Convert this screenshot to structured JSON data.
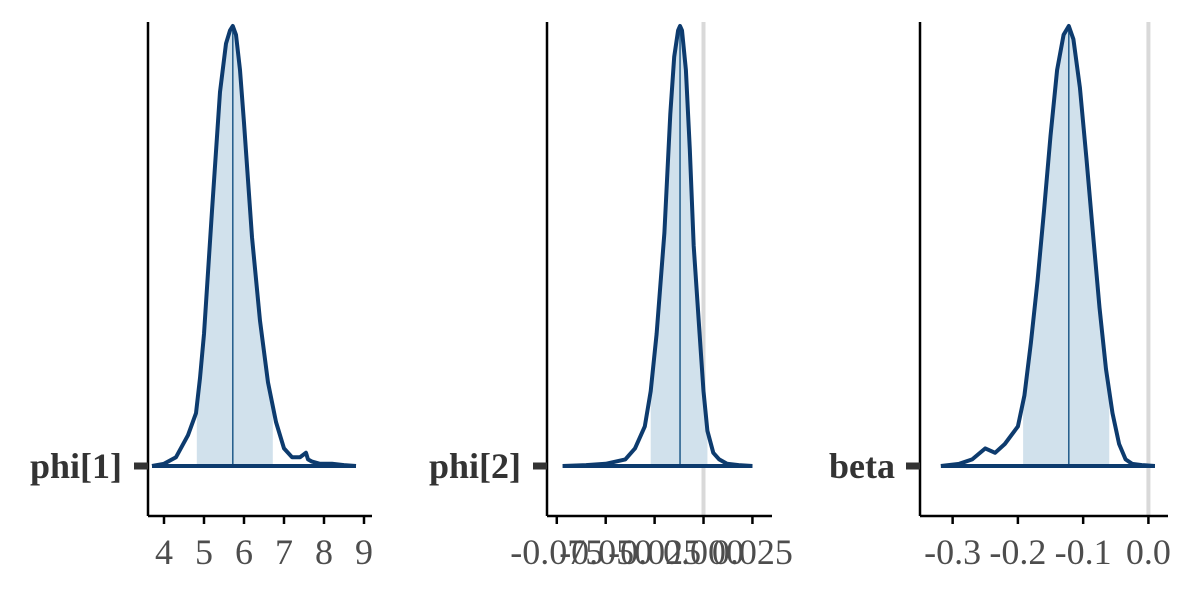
{
  "chart_data": [
    {
      "type": "area",
      "parameter": "phi[1]",
      "xlim": [
        3.6,
        9.2
      ],
      "ticks": [
        4,
        5,
        6,
        7,
        8,
        9
      ],
      "tick_labels": [
        "4",
        "5",
        "6",
        "7",
        "8",
        "9"
      ],
      "median": 5.72,
      "interval": [
        4.82,
        6.72
      ],
      "zero_line": false,
      "density": {
        "x": [
          3.7,
          4.0,
          4.3,
          4.6,
          4.8,
          4.9,
          5.0,
          5.2,
          5.4,
          5.55,
          5.65,
          5.72,
          5.8,
          5.9,
          6.0,
          6.2,
          6.4,
          6.6,
          6.8,
          7.0,
          7.2,
          7.4,
          7.55,
          7.6,
          7.7,
          7.9,
          8.2,
          8.5,
          8.8
        ],
        "y": [
          0,
          0.005,
          0.02,
          0.07,
          0.12,
          0.2,
          0.3,
          0.58,
          0.85,
          0.96,
          0.99,
          1.0,
          0.98,
          0.9,
          0.78,
          0.52,
          0.33,
          0.19,
          0.1,
          0.04,
          0.02,
          0.02,
          0.03,
          0.015,
          0.01,
          0.005,
          0.005,
          0.002,
          0
        ]
      }
    },
    {
      "type": "area",
      "parameter": "phi[2]",
      "xlim": [
        -0.08,
        0.035
      ],
      "ticks": [
        -0.075,
        -0.05,
        -0.025,
        0.0,
        0.025
      ],
      "tick_labels": [
        "-0.075",
        "-0.050",
        "-0.025",
        "0.000",
        "0.025"
      ],
      "median": -0.012,
      "interval": [
        -0.027,
        0.002
      ],
      "zero_line": true,
      "density": {
        "x": [
          -0.072,
          -0.06,
          -0.05,
          -0.04,
          -0.035,
          -0.03,
          -0.027,
          -0.024,
          -0.02,
          -0.017,
          -0.015,
          -0.013,
          -0.012,
          -0.011,
          -0.009,
          -0.007,
          -0.005,
          -0.002,
          0.0,
          0.002,
          0.005,
          0.008,
          0.012,
          0.018,
          0.025
        ],
        "y": [
          0,
          0.002,
          0.005,
          0.015,
          0.04,
          0.09,
          0.17,
          0.3,
          0.53,
          0.8,
          0.93,
          0.99,
          1.0,
          0.99,
          0.9,
          0.72,
          0.5,
          0.3,
          0.17,
          0.08,
          0.03,
          0.015,
          0.005,
          0.002,
          0
        ]
      }
    },
    {
      "type": "area",
      "parameter": "beta",
      "xlim": [
        -0.35,
        0.03
      ],
      "ticks": [
        -0.3,
        -0.2,
        -0.1,
        0.0
      ],
      "tick_labels": [
        "-0.3",
        "-0.2",
        "-0.1",
        "0.0"
      ],
      "median": -0.122,
      "interval": [
        -0.192,
        -0.06
      ],
      "zero_line": true,
      "density": {
        "x": [
          -0.318,
          -0.29,
          -0.27,
          -0.25,
          -0.235,
          -0.22,
          -0.2,
          -0.19,
          -0.18,
          -0.17,
          -0.16,
          -0.15,
          -0.14,
          -0.13,
          -0.122,
          -0.115,
          -0.105,
          -0.095,
          -0.085,
          -0.075,
          -0.065,
          -0.055,
          -0.045,
          -0.035,
          -0.025,
          -0.01,
          0.01
        ],
        "y": [
          0,
          0.005,
          0.015,
          0.04,
          0.03,
          0.05,
          0.09,
          0.16,
          0.28,
          0.42,
          0.58,
          0.75,
          0.9,
          0.98,
          1.0,
          0.97,
          0.86,
          0.7,
          0.53,
          0.36,
          0.22,
          0.12,
          0.05,
          0.015,
          0.005,
          0.002,
          0
        ]
      }
    }
  ],
  "colors": {
    "line": "#0d3b6e",
    "fill": "#d1e1ec",
    "median": "#1f5a8a",
    "zero_line": "#d9d9d9",
    "axis": "#000000",
    "param_tick": "#333333"
  }
}
